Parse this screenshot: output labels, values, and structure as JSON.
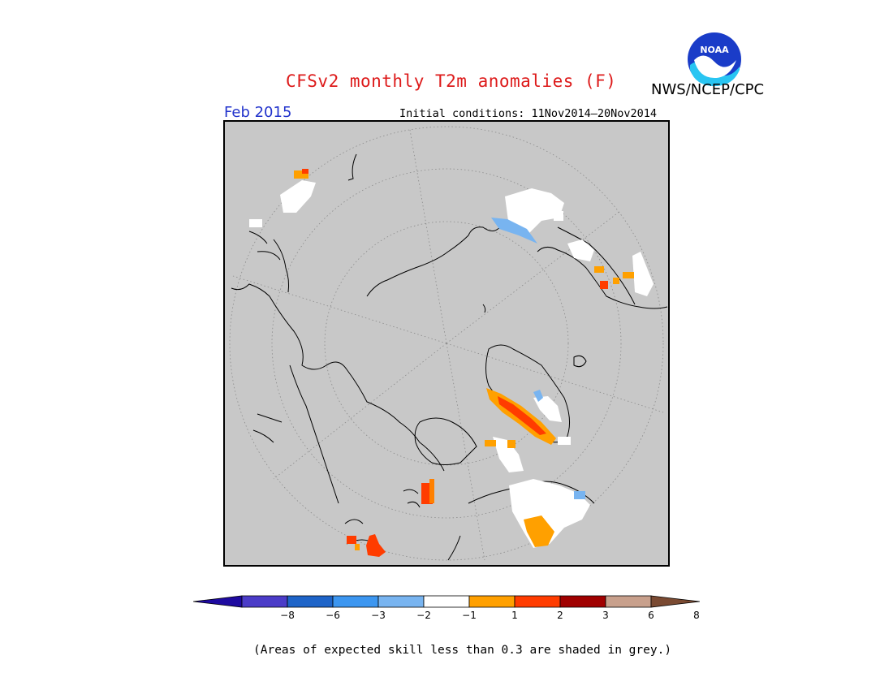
{
  "title": "CFSv2 monthly T2m anomalies (F)",
  "agency": "NWS/NCEP/CPC",
  "logo_text": "NOAA",
  "period": "Feb 2015",
  "initial_conditions": "Initial conditions: 11Nov2014—20Nov2014",
  "footnote": "(Areas of expected skill less than 0.3 are shaded in grey.)",
  "map": {
    "projection": "north-polar-stereographic",
    "background_color": "#c8c8c8",
    "low_skill_color": "#c8c8c8"
  },
  "colorbar": {
    "colors": [
      "#1e0aa0",
      "#4b3cc8",
      "#1e64c8",
      "#3c96f0",
      "#78b4f0",
      "#ffffff",
      "#ffa000",
      "#ff3c00",
      "#a00000",
      "#c8a08c",
      "#7a4a32"
    ],
    "tick_labels": [
      "−8",
      "−6",
      "−3",
      "−2",
      "−1",
      "1",
      "2",
      "3",
      "6",
      "8"
    ]
  }
}
